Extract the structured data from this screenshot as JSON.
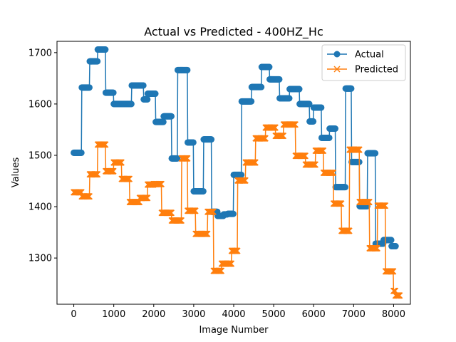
{
  "chart_data": {
    "type": "line",
    "title": "Actual vs Predicted - 400HZ_Hc",
    "xlabel": "Image Number",
    "ylabel": "Values",
    "xlim": [
      -420,
      8420
    ],
    "ylim": [
      1210,
      1722
    ],
    "xticks": [
      0,
      1000,
      2000,
      3000,
      4000,
      5000,
      6000,
      7000,
      8000
    ],
    "yticks": [
      1300,
      1400,
      1500,
      1600,
      1700
    ],
    "legend": "top-right",
    "grid": false,
    "series": [
      {
        "name": "Actual",
        "color": "#1f77b4",
        "marker": "circle",
        "steps": [
          [
            0,
            200,
            1505
          ],
          [
            200,
            400,
            1632
          ],
          [
            400,
            600,
            1683
          ],
          [
            600,
            800,
            1706
          ],
          [
            800,
            1000,
            1622
          ],
          [
            1000,
            1450,
            1600
          ],
          [
            1450,
            1750,
            1636
          ],
          [
            1750,
            1850,
            1609
          ],
          [
            1850,
            2050,
            1620
          ],
          [
            2050,
            2250,
            1565
          ],
          [
            2250,
            2450,
            1576
          ],
          [
            2450,
            2600,
            1494
          ],
          [
            2600,
            2850,
            1666
          ],
          [
            2850,
            3000,
            1525
          ],
          [
            3000,
            3250,
            1430
          ],
          [
            3250,
            3450,
            1531
          ],
          [
            3450,
            3600,
            1390
          ],
          [
            3600,
            3750,
            1382
          ],
          [
            3750,
            3850,
            1385
          ],
          [
            3850,
            4000,
            1386
          ],
          [
            4000,
            4200,
            1462
          ],
          [
            4200,
            4450,
            1605
          ],
          [
            4450,
            4700,
            1633
          ],
          [
            4700,
            4900,
            1672
          ],
          [
            4900,
            5150,
            1648
          ],
          [
            5150,
            5400,
            1611
          ],
          [
            5400,
            5650,
            1629
          ],
          [
            5650,
            5900,
            1600
          ],
          [
            5900,
            6000,
            1566
          ],
          [
            6000,
            6200,
            1593
          ],
          [
            6200,
            6400,
            1534
          ],
          [
            6400,
            6550,
            1552
          ],
          [
            6550,
            6800,
            1438
          ],
          [
            6800,
            6950,
            1630
          ],
          [
            6950,
            7150,
            1487
          ],
          [
            7150,
            7350,
            1401
          ],
          [
            7350,
            7550,
            1504
          ],
          [
            7550,
            7750,
            1328
          ],
          [
            7750,
            7950,
            1335
          ],
          [
            7950,
            8050,
            1323
          ]
        ]
      },
      {
        "name": "Predicted",
        "color": "#ff7f0e",
        "marker": "x",
        "steps": [
          [
            0,
            200,
            1428
          ],
          [
            200,
            400,
            1420
          ],
          [
            400,
            600,
            1463
          ],
          [
            600,
            800,
            1521
          ],
          [
            800,
            1000,
            1469
          ],
          [
            1000,
            1200,
            1486
          ],
          [
            1200,
            1400,
            1454
          ],
          [
            1400,
            1650,
            1409
          ],
          [
            1650,
            1850,
            1417
          ],
          [
            1850,
            2000,
            1443
          ],
          [
            2000,
            2200,
            1444
          ],
          [
            2200,
            2450,
            1388
          ],
          [
            2450,
            2700,
            1373
          ],
          [
            2700,
            2850,
            1494
          ],
          [
            2850,
            3050,
            1392
          ],
          [
            3050,
            3350,
            1347
          ],
          [
            3350,
            3500,
            1390
          ],
          [
            3500,
            3700,
            1275
          ],
          [
            3700,
            3950,
            1289
          ],
          [
            3950,
            4100,
            1314
          ],
          [
            4100,
            4300,
            1451
          ],
          [
            4300,
            4550,
            1486
          ],
          [
            4550,
            4800,
            1533
          ],
          [
            4800,
            5050,
            1554
          ],
          [
            5050,
            5250,
            1538
          ],
          [
            5250,
            5550,
            1560
          ],
          [
            5550,
            5800,
            1499
          ],
          [
            5800,
            6050,
            1482
          ],
          [
            6050,
            6250,
            1509
          ],
          [
            6250,
            6500,
            1466
          ],
          [
            6500,
            6700,
            1406
          ],
          [
            6700,
            6900,
            1353
          ],
          [
            6900,
            7150,
            1511
          ],
          [
            7150,
            7400,
            1409
          ],
          [
            7400,
            7600,
            1319
          ],
          [
            7600,
            7800,
            1402
          ],
          [
            7800,
            8000,
            1274
          ],
          [
            8000,
            8050,
            1236
          ],
          [
            8050,
            8150,
            1227
          ]
        ]
      }
    ]
  }
}
